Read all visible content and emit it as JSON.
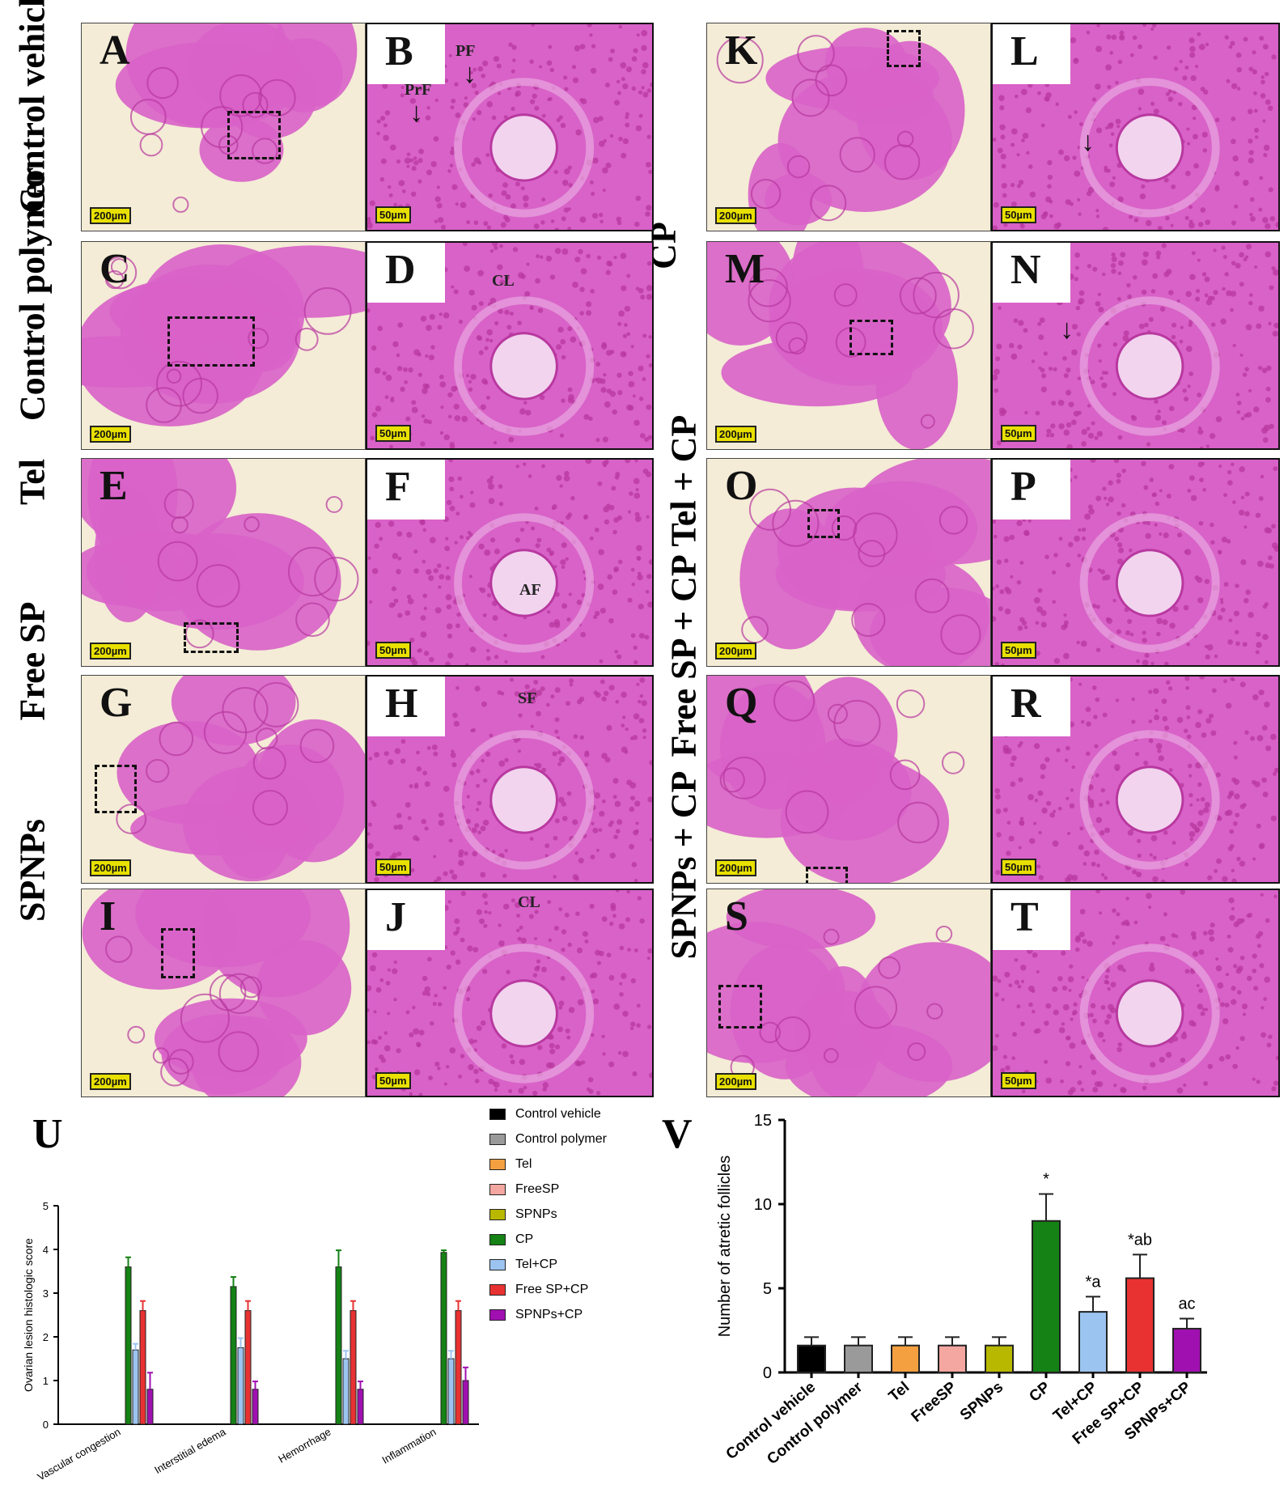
{
  "groups": {
    "control_vehicle": "Control vehicle",
    "control_polymer": "Control polymer",
    "tel": "Tel",
    "free_sp": "Free SP",
    "spnps": "SPNPs",
    "cp": "CP",
    "tel_cp": "Tel + CP",
    "free_sp_cp": "Free SP + CP",
    "spnps_cp": "SPNPs + CP"
  },
  "panels": {
    "A": "A",
    "B": "B",
    "C": "C",
    "D": "D",
    "E": "E",
    "F": "F",
    "G": "G",
    "H": "H",
    "I": "I",
    "J": "J",
    "K": "K",
    "L": "L",
    "M": "M",
    "N": "N",
    "O": "O",
    "P": "P",
    "Q": "Q",
    "R": "R",
    "S": "S",
    "T": "T"
  },
  "scale_bars": {
    "low": "200µm",
    "high": "50µm"
  },
  "annotations": {
    "pf": "PF",
    "prf": "PrF",
    "cl": "CL",
    "af": "AF",
    "sf": "SF"
  },
  "colors": {
    "tissue": "#d862c8",
    "tissue_dark": "#b8389f",
    "background": "#f4ecd6",
    "control_vehicle": "#000000",
    "control_polymer": "#9a9a9a",
    "tel": "#f5a040",
    "freesp": "#f4a6a0",
    "spnps": "#b8b800",
    "cp": "#148214",
    "tel_cp": "#9cc4f0",
    "free_sp_cp": "#e83232",
    "spnps_cp": "#a010b0"
  },
  "chart_data": [
    {
      "panel": "U",
      "type": "bar",
      "ylabel": "Ovarian lesion histologic score",
      "ylim": [
        0,
        5
      ],
      "yticks": [
        "0",
        "1",
        "2",
        "3",
        "4",
        "5"
      ],
      "categories": [
        "Vascular congestion",
        "Interstitial edema",
        "Hemorrhage",
        "Inflammation"
      ],
      "legend_placement": "right",
      "series": [
        {
          "name": "Control vehicle",
          "values": [
            0,
            0,
            0,
            0
          ],
          "errors": [
            0,
            0,
            0,
            0
          ]
        },
        {
          "name": "Control polymer",
          "values": [
            0,
            0,
            0,
            0
          ],
          "errors": [
            0,
            0,
            0,
            0
          ]
        },
        {
          "name": "Tel",
          "values": [
            0,
            0,
            0,
            0
          ],
          "errors": [
            0,
            0,
            0,
            0
          ]
        },
        {
          "name": "FreeSP",
          "values": [
            0,
            0,
            0,
            0
          ],
          "errors": [
            0,
            0,
            0,
            0
          ]
        },
        {
          "name": "SPNPs",
          "values": [
            0,
            0,
            0,
            0
          ],
          "errors": [
            0,
            0,
            0,
            0
          ]
        },
        {
          "name": "CP",
          "values": [
            3.6,
            3.15,
            3.6,
            3.93
          ],
          "errors": [
            0.22,
            0.22,
            0.38,
            0.05
          ]
        },
        {
          "name": "Tel+CP",
          "values": [
            1.7,
            1.75,
            1.5,
            1.5
          ],
          "errors": [
            0.14,
            0.22,
            0.18,
            0.18
          ]
        },
        {
          "name": "Free SP+CP",
          "values": [
            2.6,
            2.6,
            2.6,
            2.6
          ],
          "errors": [
            0.22,
            0.22,
            0.22,
            0.22
          ]
        },
        {
          "name": "SPNPs+CP",
          "values": [
            0.8,
            0.8,
            0.8,
            1.0
          ],
          "errors": [
            0.38,
            0.18,
            0.18,
            0.3
          ]
        }
      ]
    },
    {
      "panel": "V",
      "type": "bar",
      "ylabel": "Number of atretic follicles",
      "ylim": [
        0,
        15
      ],
      "yticks": [
        "0",
        "5",
        "10",
        "15"
      ],
      "categories": [
        "Control vehicle",
        "Control polymer",
        "Tel",
        "FreeSP",
        "SPNPs",
        "CP",
        "Tel+CP",
        "Free SP+CP",
        "SPNPs+CP"
      ],
      "values": [
        1.6,
        1.6,
        1.6,
        1.6,
        1.6,
        9.0,
        3.6,
        5.6,
        2.6
      ],
      "errors": [
        0.5,
        0.5,
        0.5,
        0.5,
        0.5,
        1.6,
        0.9,
        1.4,
        0.6
      ],
      "significance": [
        "",
        "",
        "",
        "",
        "",
        "*",
        "*a",
        "*ab",
        "ac"
      ]
    }
  ]
}
